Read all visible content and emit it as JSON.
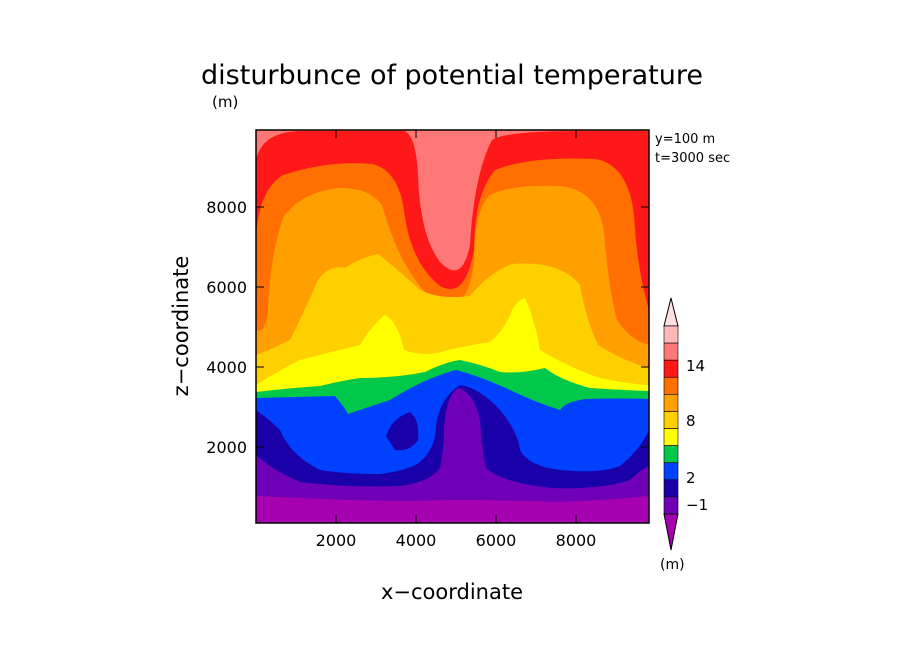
{
  "chart_data": {
    "type": "heatmap",
    "title": "disturbunce of potential temperature",
    "subtitle": "(m)",
    "xlabel": "x−coordinate",
    "ylabel": "z−coordinate",
    "annotations": [
      "y=100 m",
      "t=3000 sec"
    ],
    "xlim": [
      0,
      9800
    ],
    "ylim": [
      0,
      9800
    ],
    "x_ticks": [
      "2000",
      "4000",
      "6000",
      "8000"
    ],
    "y_ticks": [
      "2000",
      "4000",
      "6000",
      "8000"
    ],
    "colorbar": {
      "labels": [
        "14",
        "8",
        "2",
        "−1"
      ],
      "unit": "(m)",
      "levels": [
        "<-1.5",
        "-1.5",
        "-1",
        "0",
        "1",
        "2",
        "4",
        "6",
        "8",
        "10",
        "12",
        "14",
        ">14"
      ],
      "colors": [
        "#a600b0",
        "#7000b8",
        "#1a00a8",
        "#0040ff",
        "#00c84a",
        "#ffff00",
        "#ffd000",
        "#ffa000",
        "#ff7000",
        "#ff1818",
        "#ff7878",
        "#ffb8b8",
        "#ffe0e0"
      ]
    },
    "grid": false
  }
}
